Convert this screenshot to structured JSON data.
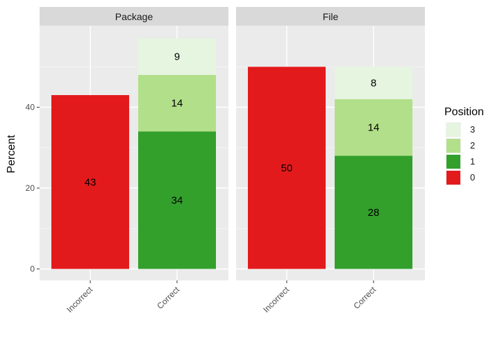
{
  "chart_data": {
    "type": "bar",
    "stacked": true,
    "ylabel": "Percent",
    "ylim": [
      0,
      60
    ],
    "yticks": [
      0,
      20,
      40
    ],
    "grid": true,
    "legend_position": "right",
    "legend": {
      "title": "Position",
      "entries": [
        {
          "label": "3",
          "color": "#e5f5e0"
        },
        {
          "label": "2",
          "color": "#b2df8a"
        },
        {
          "label": "1",
          "color": "#33a02c"
        },
        {
          "label": "0",
          "color": "#e31a1c"
        }
      ]
    },
    "panels": [
      {
        "title": "Package",
        "categories": [
          "Incorrect",
          "Correct"
        ],
        "series": [
          {
            "name": "0",
            "color": "#e31a1c",
            "values": [
              43,
              0
            ]
          },
          {
            "name": "1",
            "color": "#33a02c",
            "values": [
              0,
              34
            ]
          },
          {
            "name": "2",
            "color": "#b2df8a",
            "values": [
              0,
              14
            ]
          },
          {
            "name": "3",
            "color": "#e5f5e0",
            "values": [
              0,
              9
            ]
          }
        ]
      },
      {
        "title": "File",
        "categories": [
          "Incorrect",
          "Correct"
        ],
        "series": [
          {
            "name": "0",
            "color": "#e31a1c",
            "values": [
              50,
              0
            ]
          },
          {
            "name": "1",
            "color": "#33a02c",
            "values": [
              0,
              28
            ]
          },
          {
            "name": "2",
            "color": "#b2df8a",
            "values": [
              0,
              14
            ]
          },
          {
            "name": "3",
            "color": "#e5f5e0",
            "values": [
              0,
              8
            ]
          }
        ]
      }
    ]
  }
}
